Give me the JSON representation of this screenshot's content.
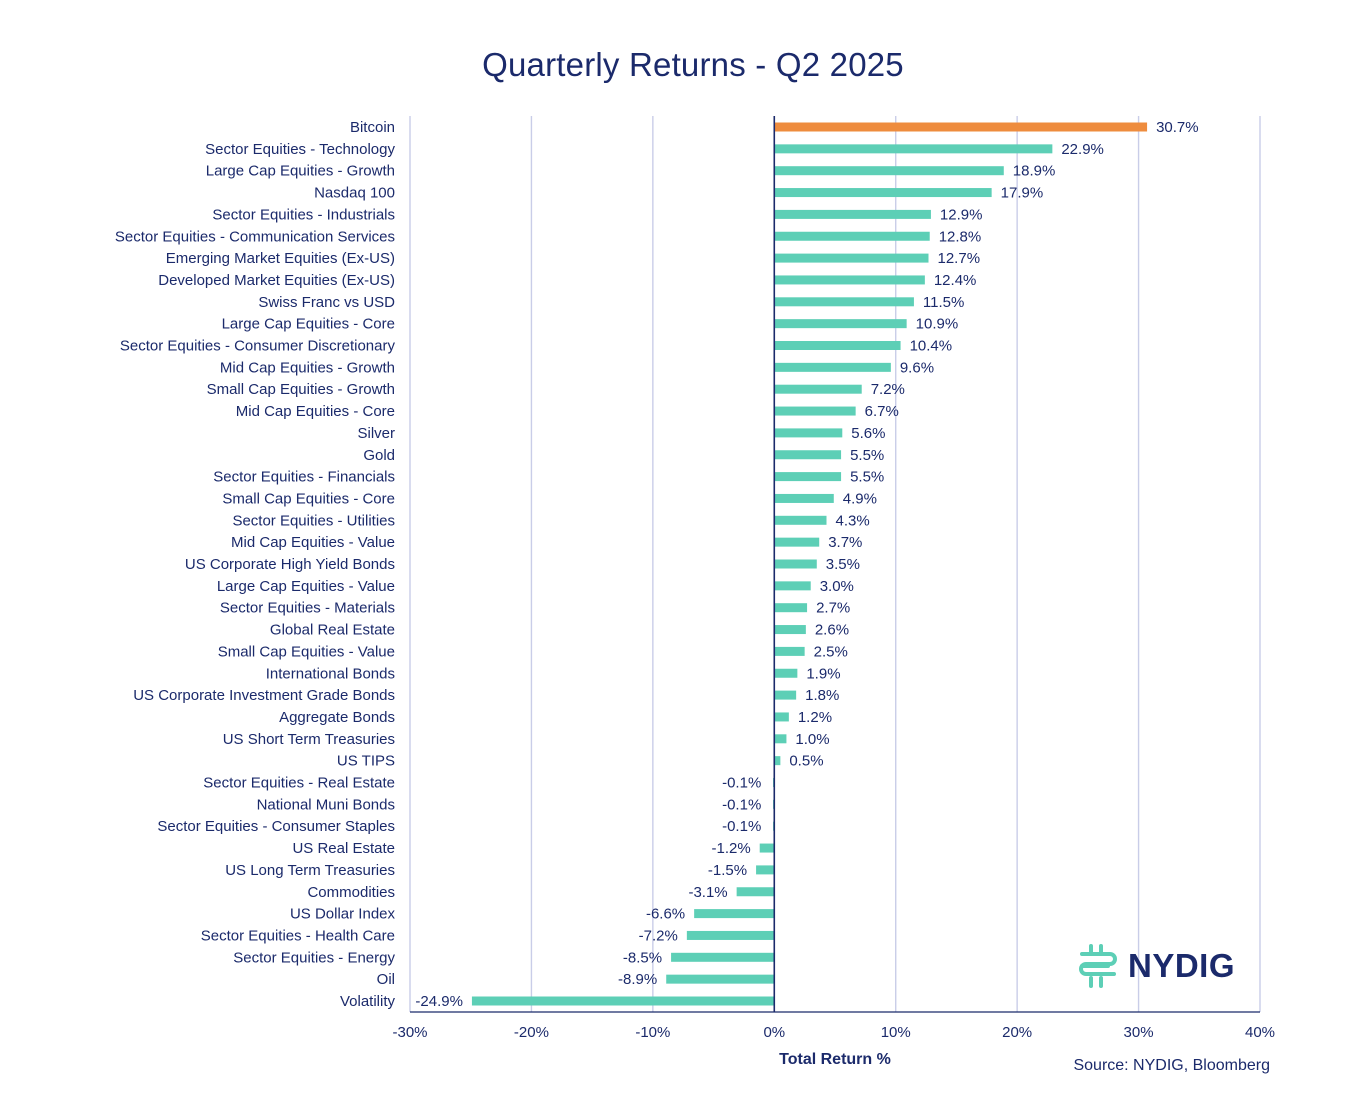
{
  "chart_data": {
    "type": "bar",
    "orientation": "horizontal",
    "title": "Quarterly Returns - Q2 2025",
    "xlabel": "Total Return %",
    "ylabel": "",
    "xlim": [
      -30,
      40
    ],
    "xticks": [
      -30,
      -20,
      -10,
      0,
      10,
      20,
      30,
      40
    ],
    "xtick_labels": [
      "-30%",
      "-20%",
      "-10%",
      "0%",
      "10%",
      "20%",
      "30%",
      "40%"
    ],
    "grid": true,
    "source": "Source: NYDIG, Bloomberg",
    "colors": {
      "highlight": "#ee8c3e",
      "default": "#5dcfb6",
      "text": "#1b2a6b",
      "grid": "#c9cde8",
      "axis": "#1b2a6b"
    },
    "categories": [
      "Bitcoin",
      "Sector Equities - Technology",
      "Large Cap Equities - Growth",
      "Nasdaq 100",
      "Sector Equities - Industrials",
      "Sector Equities - Communication Services",
      "Emerging Market Equities (Ex-US)",
      "Developed Market Equities (Ex-US)",
      "Swiss Franc vs USD",
      "Large Cap Equities - Core",
      "Sector Equities - Consumer Discretionary",
      "Mid Cap Equities - Growth",
      "Small Cap Equities - Growth",
      "Mid Cap Equities - Core",
      "Silver",
      "Gold",
      "Sector Equities - Financials",
      "Small Cap Equities - Core",
      "Sector Equities - Utilities",
      "Mid Cap Equities - Value",
      "US Corporate High Yield Bonds",
      "Large Cap Equities - Value",
      "Sector Equities - Materials",
      "Global Real Estate",
      "Small Cap Equities - Value",
      "International Bonds",
      "US Corporate Investment Grade Bonds",
      "Aggregate Bonds",
      "US Short Term Treasuries",
      "US TIPS",
      "Sector Equities - Real Estate",
      "National Muni Bonds",
      "Sector Equities - Consumer Staples",
      "US Real Estate",
      "US Long Term Treasuries",
      "Commodities",
      "US Dollar Index",
      "Sector Equities - Health Care",
      "Sector Equities - Energy",
      "Oil",
      "Volatility"
    ],
    "values": [
      30.7,
      22.9,
      18.9,
      17.9,
      12.9,
      12.8,
      12.7,
      12.4,
      11.5,
      10.9,
      10.4,
      9.6,
      7.2,
      6.7,
      5.6,
      5.5,
      5.5,
      4.9,
      4.3,
      3.7,
      3.5,
      3.0,
      2.7,
      2.6,
      2.5,
      1.9,
      1.8,
      1.2,
      1.0,
      0.5,
      -0.1,
      -0.1,
      -0.1,
      -1.2,
      -1.5,
      -3.1,
      -6.6,
      -7.2,
      -8.5,
      -8.9,
      -24.9
    ],
    "value_labels": [
      "30.7%",
      "22.9%",
      "18.9%",
      "17.9%",
      "12.9%",
      "12.8%",
      "12.7%",
      "12.4%",
      "11.5%",
      "10.9%",
      "10.4%",
      "9.6%",
      "7.2%",
      "6.7%",
      "5.6%",
      "5.5%",
      "5.5%",
      "4.9%",
      "4.3%",
      "3.7%",
      "3.5%",
      "3.0%",
      "2.7%",
      "2.6%",
      "2.5%",
      "1.9%",
      "1.8%",
      "1.2%",
      "1.0%",
      "0.5%",
      "-0.1%",
      "-0.1%",
      "-0.1%",
      "-1.2%",
      "-1.5%",
      "-3.1%",
      "-6.6%",
      "-7.2%",
      "-8.5%",
      "-8.9%",
      "-24.9%"
    ],
    "highlight_index": 0
  },
  "logo": {
    "name": "NYDIG",
    "icon": "nydig-logo-icon"
  }
}
